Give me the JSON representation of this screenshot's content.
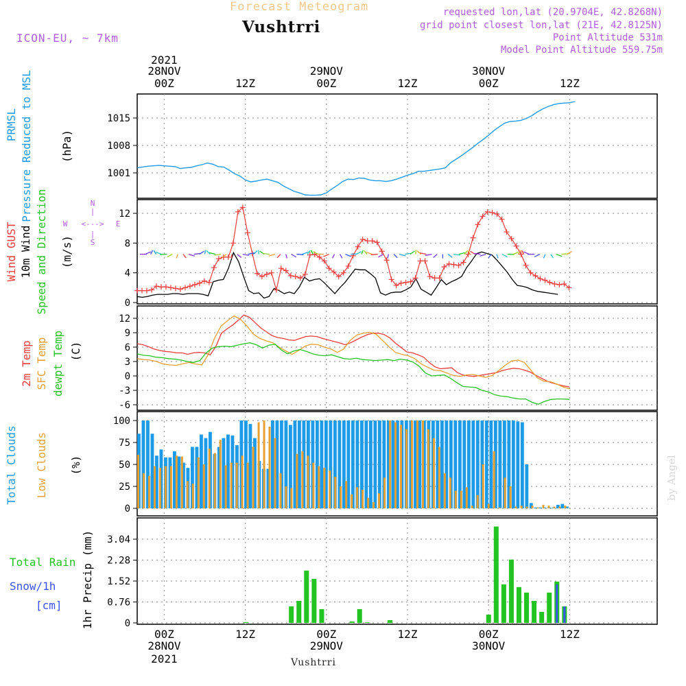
{
  "header": {
    "subtitle": "Forecast Meteogram",
    "location": "Vushtrri",
    "model": "ICON-EU, ~ 7km",
    "requested": "requested lon,lat (20.9704E, 42.8268N)",
    "gridpoint": "grid point closest lon,lat (21E, 42.8125N)",
    "point_alt": "Point Altitude 531m",
    "model_alt": "Model Point Altitude 559.75m"
  },
  "top_axis": {
    "year": "2021",
    "days": [
      {
        "label": "28NOV",
        "hour": "00Z"
      },
      {
        "label": "29NOV",
        "hour": "00Z"
      },
      {
        "label": "30NOV",
        "hour": "00Z"
      }
    ],
    "mid_hours": [
      "12Z",
      "12Z",
      "12Z"
    ]
  },
  "bottom_axis": {
    "hours": [
      "00Z",
      "12Z",
      "00Z",
      "12Z",
      "00Z",
      "12Z"
    ],
    "days": [
      "28NOV",
      "29NOV",
      "30NOV"
    ],
    "year": "2021",
    "footer": "Vushtrri"
  },
  "watermark": "by Angel",
  "colors": {
    "blue": "#1e9be8",
    "red": "#ee3b3b",
    "green": "#22c422",
    "orange": "#e6a032",
    "violet": "#b05ce0",
    "black": "#000000",
    "snow": "#3a52f0"
  },
  "chart_data": [
    {
      "type": "line",
      "title": "PRMSL Pressure Reduced to MSL",
      "ylabel": "(hPa)",
      "label_lines": [
        "PRMSL",
        "Pressure Reduced to MSL"
      ],
      "yticks": [
        1001,
        1008,
        1015
      ],
      "ylim": [
        993.5,
        1020
      ],
      "x_hours": "-4 to 60 hours from 28NOV 00Z, hourly",
      "series": [
        {
          "name": "PRMSL",
          "values": [
            1002.3,
            1002.5,
            1002.7,
            1002.8,
            1002.9,
            1002.8,
            1002.7,
            1002.6,
            1002.1,
            1002.3,
            1002.4,
            1002.8,
            1003.1,
            1003.5,
            1003.2,
            1002.6,
            1002.5,
            1001.7,
            1000.8,
            1000.2,
            999.2,
            998.7,
            998.9,
            999.2,
            999.4,
            999.0,
            998.6,
            997.7,
            997.0,
            996.3,
            995.9,
            995.4,
            995.3,
            995.3,
            995.4,
            995.9,
            996.9,
            997.8,
            998.8,
            999.4,
            999.3,
            999.7,
            999.6,
            999.2,
            999.0,
            999.0,
            998.8,
            999.0,
            999.4,
            999.9,
            1000.4,
            1000.8,
            1001.4,
            1001.4,
            1001.6,
            1001.8,
            1002.0,
            1002.3,
            1003.6,
            1004.5,
            1005.4,
            1006.4,
            1007.4,
            1008.5,
            1009.5,
            1010.6,
            1011.8,
            1012.8,
            1013.7,
            1014.1,
            1014.2,
            1014.4,
            1014.9,
            1015.6,
            1016.5,
            1017.3,
            1017.9,
            1018.4,
            1018.7,
            1018.8,
            1018.9,
            1019.2
          ]
        }
      ]
    },
    {
      "type": "line",
      "title": "Wind GUST / 10m Wind / Speed and Direction",
      "ylabel": "(m/s)",
      "label_lines": [
        "Wind GUST",
        "10m Wind",
        "Speed and Direction"
      ],
      "compass": {
        "n": "N",
        "s": "S",
        "w": "W",
        "e": "E",
        "h": "<--->",
        "v": "|"
      },
      "yticks": [
        0,
        4,
        8,
        12
      ],
      "ylim": [
        0,
        13.5
      ],
      "series": [
        {
          "name": "Wind GUST",
          "values": [
            1.6,
            1.6,
            1.6,
            1.7,
            2.2,
            2.1,
            2.1,
            2.0,
            1.9,
            1.8,
            2.0,
            2.2,
            2.4,
            2.6,
            2.9,
            2.7,
            4.7,
            5.9,
            6.1,
            6.1,
            8.0,
            12.2,
            12.8,
            9.4,
            6.6,
            3.9,
            3.5,
            3.8,
            4.0,
            1.7,
            4.6,
            4.3,
            3.6,
            3.5,
            3.3,
            3.8,
            6.4,
            6.5,
            6.1,
            5.6,
            4.6,
            4.1,
            3.5,
            4.0,
            4.9,
            6.3,
            7.5,
            8.5,
            8.3,
            8.3,
            8.1,
            6.9,
            5.7,
            3.1,
            2.3,
            2.6,
            2.7,
            2.8,
            3.3,
            5.6,
            5.6,
            3.5,
            3.3,
            3.3,
            4.8,
            5.2,
            5.1,
            5.0,
            5.4,
            6.5,
            8.7,
            10.5,
            11.6,
            12.2,
            12.1,
            11.9,
            11.2,
            9.5,
            8.6,
            7.6,
            6.5,
            5.0,
            4.0,
            3.6,
            3.2,
            3.0,
            2.7,
            2.5,
            2.4,
            2.5,
            2.0
          ]
        },
        {
          "name": "10m Wind",
          "values": [
            0.8,
            0.7,
            0.8,
            1.0,
            1.1,
            1.1,
            1.1,
            1.2,
            1.2,
            1.1,
            1.2,
            1.2,
            1.2,
            1.1,
            0.9,
            2.8,
            3.0,
            3.1,
            4.6,
            6.7,
            5.5,
            3.5,
            1.6,
            1.2,
            1.3,
            0.6,
            0.8,
            1.9,
            1.6,
            1.2,
            1.4,
            1.2,
            2.1,
            3.4,
            2.9,
            3.1,
            3.2,
            2.6,
            1.9,
            1.2,
            2.0,
            2.7,
            3.6,
            4.5,
            4.4,
            4.4,
            3.9,
            3.3,
            1.3,
            1.0,
            1.3,
            1.4,
            1.4,
            1.7,
            2.1,
            3.2,
            1.8,
            1.4,
            1.0,
            2.0,
            3.1,
            2.4,
            2.8,
            3.1,
            3.5,
            4.7,
            5.6,
            6.6,
            6.8,
            6.6,
            6.4,
            5.7,
            4.9,
            4.1,
            3.1,
            2.3,
            2.2,
            2.0,
            1.7,
            1.5,
            1.4,
            1.3,
            1.2,
            1.1
          ]
        }
      ]
    },
    {
      "type": "line",
      "title": "2m Temp / SFC Temp / dewpt Temp",
      "ylabel": "(C)",
      "label_lines": [
        "2m Temp",
        "SFC Temp",
        "dewpt Temp"
      ],
      "yticks": [
        -6,
        -3,
        0,
        3,
        6,
        9,
        12
      ],
      "ylim": [
        -7,
        13.5
      ],
      "series": [
        {
          "name": "2m Temp",
          "values": [
            6.7,
            6.5,
            6.1,
            5.6,
            5.3,
            5.1,
            5.0,
            4.8,
            4.8,
            4.5,
            4.8,
            4.9,
            4.8,
            4.4,
            6.1,
            8.9,
            9.8,
            10.6,
            11.6,
            12.7,
            12.2,
            11.1,
            10.0,
            9.2,
            8.4,
            8.0,
            7.8,
            7.5,
            7.4,
            7.8,
            8.2,
            8.3,
            8.2,
            7.8,
            7.5,
            7.2,
            6.9,
            6.5,
            6.9,
            7.5,
            8.1,
            8.6,
            8.9,
            8.9,
            8.6,
            7.9,
            6.8,
            5.9,
            5.0,
            4.8,
            4.4,
            3.9,
            2.8,
            1.9,
            1.5,
            1.6,
            1.7,
            0.7,
            0.2,
            0.0,
            -0.1,
            0.1,
            0.3,
            0.5,
            0.7,
            1.1,
            1.4,
            1.6,
            1.5,
            1.2,
            0.8,
            0.1,
            -0.5,
            -1.1,
            -1.5,
            -1.8,
            -2.1,
            -2.3
          ]
        },
        {
          "name": "SFC Temp",
          "values": [
            3.6,
            3.4,
            3.3,
            3.0,
            2.5,
            2.3,
            2.2,
            2.5,
            2.8,
            2.5,
            2.3,
            4.4,
            7.9,
            10.4,
            11.5,
            12.5,
            11.8,
            10.4,
            8.7,
            7.8,
            7.3,
            6.9,
            6.0,
            5.2,
            4.5,
            5.3,
            6.2,
            6.6,
            6.5,
            6.0,
            5.6,
            4.9,
            5.6,
            7.4,
            8.5,
            8.9,
            9.1,
            8.7,
            7.4,
            6.1,
            4.9,
            4.5,
            4.2,
            3.6,
            2.5,
            1.8,
            1.2,
            1.1,
            0.6,
            0.1,
            -0.1,
            0.2,
            0.3,
            0.0,
            -0.3,
            0.1,
            1.1,
            2.2,
            3.1,
            3.3,
            2.8,
            1.2,
            -0.4,
            -1.1,
            -1.2,
            -1.7,
            -2.3,
            -2.7
          ]
        },
        {
          "name": "dewpt Temp",
          "values": [
            4.6,
            4.3,
            4.2,
            3.9,
            3.8,
            3.6,
            3.5,
            3.3,
            3.0,
            2.8,
            3.2,
            4.8,
            5.8,
            6.1,
            6.2,
            6.1,
            6.4,
            6.7,
            6.9,
            6.5,
            5.8,
            6.4,
            6.6,
            5.4,
            4.6,
            5.2,
            5.5,
            5.1,
            4.6,
            4.3,
            4.2,
            4.4,
            4.0,
            3.6,
            3.5,
            3.7,
            3.4,
            3.3,
            3.2,
            3.3,
            3.4,
            3.2,
            3.5,
            3.3,
            2.9,
            2.0,
            0.6,
            0.0,
            0.1,
            0.2,
            -0.5,
            -1.4,
            -2.2,
            -2.3,
            -2.4,
            -3.0,
            -3.3,
            -3.9,
            -4.2,
            -4.3,
            -4.6,
            -4.8,
            -4.8,
            -5.5,
            -5.9,
            -5.3,
            -4.9,
            -4.8,
            -4.8,
            -4.9
          ]
        }
      ]
    },
    {
      "type": "bar",
      "title": "Total Clouds / Low Clouds",
      "ylabel": "(%)",
      "label_lines": [
        "Total Clouds",
        "Low Clouds"
      ],
      "yticks": [
        0,
        25,
        50,
        75,
        100
      ],
      "ylim": [
        0,
        100
      ],
      "series": [
        {
          "name": "Total Clouds",
          "values": [
            85,
            100,
            100,
            85,
            60,
            67,
            58,
            58,
            65,
            59,
            52,
            46,
            70,
            70,
            84,
            80,
            87,
            62,
            70,
            80,
            84,
            83,
            72,
            100,
            100,
            96,
            80,
            54,
            45,
            45,
            100,
            100,
            100,
            100,
            95,
            100,
            100,
            100,
            100,
            100,
            100,
            100,
            100,
            100,
            100,
            100,
            100,
            100,
            100,
            100,
            100,
            100,
            100,
            100,
            100,
            100,
            100,
            100,
            100,
            100,
            100,
            100,
            100,
            100,
            100,
            100,
            100,
            100,
            100,
            100,
            100,
            100,
            100,
            100,
            100,
            100,
            100,
            100,
            100,
            100,
            100,
            100,
            100,
            100,
            100,
            99,
            98,
            50,
            6,
            1,
            1,
            1,
            1,
            1,
            4,
            5,
            2
          ]
        },
        {
          "name": "Low Clouds",
          "values": [
            61,
            40,
            37,
            48,
            46,
            48,
            48,
            60,
            59,
            31,
            28,
            58,
            50,
            68,
            63,
            78,
            49,
            52,
            52,
            60,
            52,
            70,
            98,
            100,
            93,
            80,
            40,
            25,
            23,
            62,
            65,
            60,
            52,
            48,
            46,
            43,
            36,
            25,
            31,
            16,
            24,
            21,
            12,
            7,
            17,
            35,
            100,
            98,
            95,
            90,
            100,
            100,
            100,
            90,
            80,
            70,
            40,
            35,
            20,
            20,
            24,
            3,
            15,
            50,
            5,
            65,
            1,
            35,
            25,
            2,
            3,
            2,
            3,
            1,
            4,
            3,
            2,
            2,
            3
          ]
        }
      ]
    },
    {
      "type": "bar",
      "title": "Total Rain / Snow/1h [cm]",
      "ylabel": "1hr Precip (mm)",
      "label_lines": [
        "Total  Rain",
        "Snow/1h",
        "[cm]"
      ],
      "yticks": [
        0,
        0.76,
        1.52,
        2.28,
        3.04
      ],
      "ylim": [
        0,
        3.6
      ],
      "series": [
        {
          "name": "Total Rain",
          "values": [
            0.0,
            0.0,
            0.0,
            0.0,
            0.0,
            0.0,
            0.0,
            0.0,
            0.0,
            0.0,
            0.0,
            0.0,
            0.0,
            0.0,
            0.03,
            0.0,
            0.0,
            0.0,
            0.0,
            0.0,
            0.6,
            0.8,
            1.9,
            1.6,
            0.5,
            0.0,
            0.0,
            0.0,
            0.05,
            0.5,
            0.02,
            0.0,
            0.0,
            0.1,
            0.0,
            0.0,
            0.0,
            0.0,
            0.0,
            0.0,
            0.0,
            0.0,
            0.0,
            0.0,
            0.0,
            0.0,
            0.3,
            3.5,
            1.4,
            2.3,
            1.3,
            1.1,
            0.8,
            0.4,
            1.1,
            1.5,
            0.6
          ]
        },
        {
          "name": "Snow/1h",
          "values": [
            0.0,
            0.0,
            0.0,
            0.0,
            0.0,
            0.0,
            0.0,
            0.0,
            0.0,
            0.0,
            0.0,
            0.0,
            0.0,
            0.0,
            0.0,
            0.0,
            0.0,
            0.0,
            0.0,
            0.0,
            0.0,
            0.0,
            0.0,
            0.0,
            0.0,
            0.0,
            0.0,
            0.0,
            0.0,
            0.0,
            0.0,
            0.0,
            0.0,
            0.0,
            0.0,
            0.0,
            0.0,
            0.0,
            0.0,
            0.0,
            0.0,
            0.0,
            0.0,
            0.0,
            0.0,
            0.0,
            0.0,
            0.0,
            0.0,
            0.0,
            0.0,
            0.0,
            0.0,
            0.0,
            0.0,
            1.4,
            0.6
          ]
        }
      ]
    }
  ]
}
